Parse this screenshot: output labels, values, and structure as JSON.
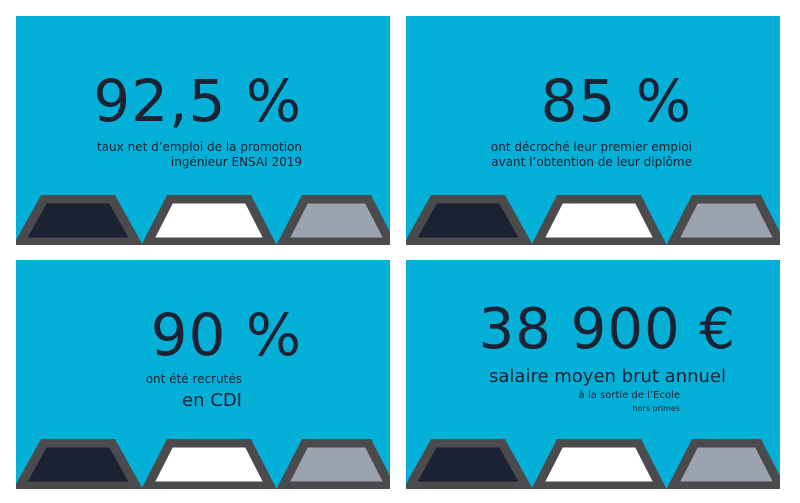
{
  "stats": [
    {
      "value": "92,5 %",
      "lines": [
        "taux net d’emploi de la promotion",
        "ingénieur ENSAI 2019"
      ]
    },
    {
      "value": "85 %",
      "lines": [
        "ont décroché leur premier emploi",
        "avant l’obtention de leur diplôme"
      ]
    },
    {
      "value": "90 %",
      "line1": "ont été recrutés",
      "line2": "en CDI"
    },
    {
      "value": "38 900 €",
      "headline": "salaire moyen brut annuel",
      "line1": "à la sortie de l’Ecole",
      "line2": "hors primes"
    }
  ],
  "colors": {
    "card_background": "#04b0d7",
    "text": "#1b2233",
    "hexagon_outline": "#4b4b4d",
    "hexagon_dark": "#1b2233",
    "hexagon_white": "#ffffff",
    "hexagon_grey": "#9aa3ae"
  }
}
